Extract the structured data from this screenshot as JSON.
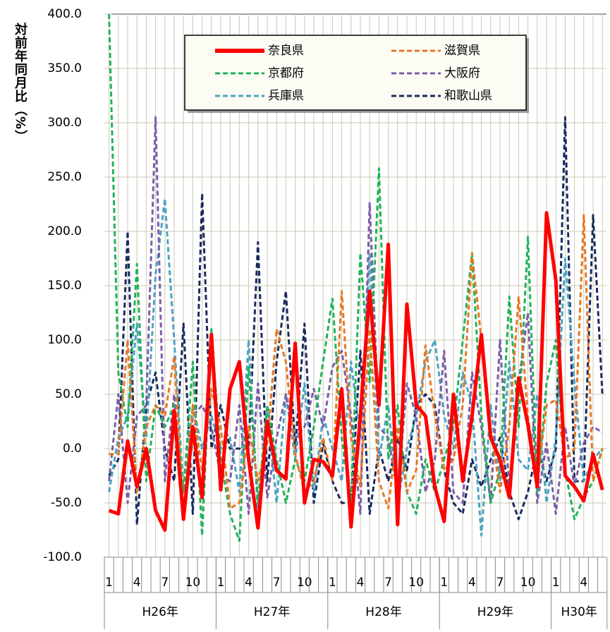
{
  "chart_data": {
    "type": "line",
    "y_label": "対前年同月比（%）",
    "categories": [
      "1",
      null,
      null,
      "4",
      null,
      null,
      "7",
      null,
      null,
      "10",
      null,
      null,
      "1",
      null,
      null,
      "4",
      null,
      null,
      "7",
      null,
      null,
      "10",
      null,
      null,
      "1",
      null,
      null,
      "4",
      null,
      null,
      "7",
      null,
      null,
      "10",
      null,
      null,
      "1",
      null,
      null,
      "4",
      null,
      null,
      "7",
      null,
      null,
      "10",
      null,
      null,
      "1",
      null,
      null,
      "4",
      null,
      null
    ],
    "groups": [
      {
        "label": "H26年",
        "count": 12
      },
      {
        "label": "H27年",
        "count": 12
      },
      {
        "label": "H28年",
        "count": 12
      },
      {
        "label": "H29年",
        "count": 12
      },
      {
        "label": "H30年",
        "count": 6
      }
    ],
    "ylim": [
      -100,
      400
    ],
    "yticks": [
      {
        "value": -100,
        "label": "-100.0"
      },
      {
        "value": -50,
        "label": "-50.0"
      },
      {
        "value": 0,
        "label": "0.0"
      },
      {
        "value": 50,
        "label": "50.0"
      },
      {
        "value": 100,
        "label": "100.0"
      },
      {
        "value": 150,
        "label": "150.0"
      },
      {
        "value": 200,
        "label": "200.0"
      },
      {
        "value": 250,
        "label": "250.0"
      },
      {
        "value": 300,
        "label": "300.0"
      },
      {
        "value": 350,
        "label": "350.0"
      },
      {
        "value": 400,
        "label": "400.0"
      }
    ],
    "negative_tick_color": "#ff0000",
    "grid": true,
    "series": [
      {
        "name": "奈良県",
        "color": "#ff0000",
        "style": "solid",
        "values": [
          -57,
          -60,
          7,
          -35,
          0,
          -57,
          -75,
          35,
          -65,
          20,
          -45,
          105,
          -38,
          55,
          80,
          -10,
          -73,
          25,
          -20,
          -28,
          97,
          -50,
          -10,
          -12,
          -25,
          55,
          -72,
          30,
          145,
          40,
          188,
          -70,
          133,
          40,
          30,
          -35,
          -67,
          50,
          -30,
          30,
          105,
          10,
          -10,
          -45,
          65,
          22,
          -35,
          217,
          155,
          -25,
          -35,
          -48,
          -5,
          -38
        ]
      },
      {
        "name": "滋賀県",
        "color": "#e87722",
        "style": "dashed",
        "values": [
          -5,
          -5,
          100,
          -40,
          20,
          40,
          30,
          85,
          -60,
          40,
          -20,
          55,
          20,
          -55,
          -50,
          20,
          -30,
          5,
          110,
          80,
          -5,
          -40,
          -30,
          10,
          -30,
          145,
          10,
          -35,
          110,
          -30,
          -55,
          20,
          -40,
          -20,
          95,
          30,
          -20,
          -10,
          40,
          180,
          100,
          20,
          -40,
          20,
          140,
          30,
          -30,
          40,
          45,
          -10,
          0,
          215,
          -30,
          0
        ]
      },
      {
        "name": "京都府",
        "color": "#1fb35a",
        "style": "dashed",
        "values": [
          400,
          70,
          20,
          170,
          -30,
          40,
          20,
          40,
          -40,
          80,
          -80,
          110,
          -10,
          -60,
          -85,
          75,
          -50,
          40,
          -10,
          -50,
          -10,
          -30,
          20,
          80,
          138,
          10,
          -50,
          180,
          60,
          258,
          -10,
          40,
          -40,
          -60,
          -10,
          -40,
          -10,
          20,
          100,
          180,
          30,
          -50,
          -20,
          140,
          20,
          195,
          -40,
          60,
          100,
          -20,
          -65,
          -45,
          -30,
          0
        ]
      },
      {
        "name": "大阪府",
        "color": "#7b5ea7",
        "style": "dashed",
        "values": [
          -30,
          50,
          -50,
          30,
          40,
          305,
          -30,
          50,
          -60,
          30,
          40,
          20,
          -25,
          -30,
          40,
          -60,
          60,
          -45,
          10,
          50,
          10,
          20,
          55,
          20,
          75,
          90,
          30,
          -60,
          226,
          20,
          10,
          -40,
          60,
          30,
          -40,
          -10,
          90,
          -40,
          -50,
          70,
          20,
          -50,
          100,
          -40,
          60,
          125,
          -50,
          5,
          -60,
          20,
          -35,
          5,
          20,
          15
        ]
      },
      {
        "name": "兵庫県",
        "color": "#4aa3c2",
        "style": "dashed",
        "values": [
          -40,
          10,
          30,
          115,
          10,
          160,
          230,
          100,
          -40,
          40,
          0,
          30,
          0,
          10,
          -40,
          100,
          -60,
          35,
          -50,
          50,
          -10,
          60,
          -40,
          30,
          0,
          -30,
          80,
          10,
          180,
          -10,
          40,
          -50,
          0,
          30,
          80,
          100,
          30,
          0,
          70,
          40,
          -80,
          40,
          -30,
          80,
          -10,
          -20,
          50,
          -50,
          10,
          175,
          60,
          -30,
          -10,
          0
        ]
      },
      {
        "name": "和歌山県",
        "color": "#1a2a5e",
        "style": "dashed",
        "values": [
          -25,
          -10,
          200,
          -70,
          40,
          70,
          0,
          -30,
          115,
          -60,
          235,
          0,
          40,
          0,
          0,
          0,
          190,
          -30,
          80,
          145,
          0,
          115,
          -50,
          5,
          -30,
          -50,
          -50,
          90,
          -60,
          0,
          -30,
          10,
          -20,
          40,
          50,
          40,
          -20,
          -50,
          -60,
          -10,
          -35,
          -10,
          10,
          -40,
          -65,
          -40,
          0,
          -30,
          0,
          305,
          -30,
          -30,
          215,
          50
        ]
      }
    ]
  }
}
